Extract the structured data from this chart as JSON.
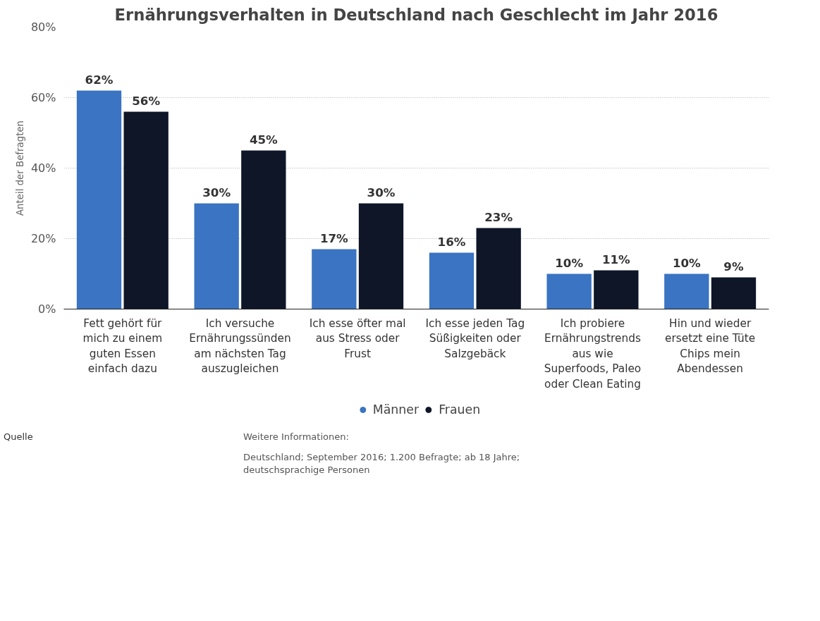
{
  "chart_data": {
    "type": "bar",
    "title": "Ernährungsverhalten in Deutschland nach Geschlecht im Jahr 2016",
    "ylabel": "Anteil der Befragten",
    "categories": [
      "Fett gehört für mich zu einem guten Essen einfach dazu",
      "Ich versuche Ernährungssünden am nächsten Tag auszugleichen",
      "Ich esse öfter mal aus Stress oder Frust",
      "Ich esse jeden Tag Süßigkeiten oder Salzgebäck",
      "Ich probiere Ernährungstrends aus wie Superfoods, Paleo oder Clean Eating",
      "Hin und wieder ersetzt eine Tüte Chips mein Abendessen"
    ],
    "series": [
      {
        "name": "Männer",
        "color": "#3a74c2",
        "values": [
          62,
          30,
          17,
          16,
          10,
          10
        ],
        "value_labels": [
          "62%",
          "30%",
          "17%",
          "16%",
          "10%",
          "10%"
        ]
      },
      {
        "name": "Frauen",
        "color": "#0e1628",
        "values": [
          56,
          45,
          30,
          23,
          11,
          9
        ],
        "value_labels": [
          "56%",
          "45%",
          "30%",
          "23%",
          "11%",
          "9%"
        ]
      }
    ],
    "ylim": [
      0,
      80
    ],
    "yticks": [
      {
        "value": 0,
        "label": "0%"
      },
      {
        "value": 20,
        "label": "20%"
      },
      {
        "value": 40,
        "label": "40%"
      },
      {
        "value": 60,
        "label": "60%"
      },
      {
        "value": 80,
        "label": "80%"
      }
    ],
    "grid": "y",
    "legend": "bottom",
    "annotations": [
      "Quelle",
      "Weitere Informationen:",
      "Deutschland; September 2016; 1.200 Befragte; ab 18 Jahre; deutschsprachige Personen"
    ]
  }
}
